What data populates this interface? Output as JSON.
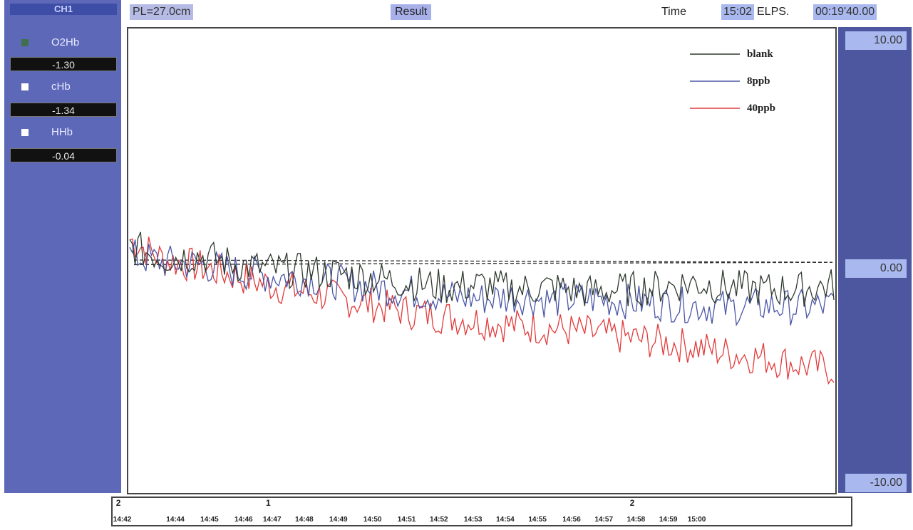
{
  "channel": {
    "header": "CH1",
    "items": [
      {
        "label": "O2Hb",
        "value": "-1.30",
        "swatch": "#3f6f4c"
      },
      {
        "label": "cHb",
        "value": "-1.34",
        "swatch": "#ffffff"
      },
      {
        "label": "HHb",
        "value": "-0.04",
        "swatch": "#ffffff"
      }
    ]
  },
  "top": {
    "pl": "PL=27.0cm",
    "result": "Result",
    "time_label": "Time",
    "time_value": "15:02",
    "elps_label": "ELPS.",
    "elps_value": "00:19'40.00"
  },
  "scale": {
    "top": "10.00",
    "mid": "0.00",
    "bottom": "-10.00"
  },
  "time_axis": {
    "ticks": [
      "14:42",
      "14:44",
      "14:45",
      "14:46",
      "14:47",
      "14:48",
      "14:49",
      "14:50",
      "14:51",
      "14:52",
      "14:53",
      "14:54",
      "14:55",
      "14:56",
      "14:57",
      "14:58",
      "14:59",
      "15:00"
    ],
    "markers": [
      {
        "label": "2",
        "at": "14:42"
      },
      {
        "label": "1",
        "at": "14:47"
      },
      {
        "label": "2",
        "at": "14:58"
      }
    ]
  },
  "chart_data": {
    "type": "line",
    "title": "",
    "xlabel": "",
    "ylabel": "",
    "ylim": [
      -10,
      10
    ],
    "x": [
      0,
      1,
      2,
      3,
      4,
      5,
      6,
      7,
      8,
      9,
      10,
      11,
      12,
      13,
      14,
      15,
      16,
      17,
      18,
      19,
      20
    ],
    "series": [
      {
        "name": "blank",
        "color": "#2f3a2f",
        "values": [
          0.6,
          0.1,
          0.2,
          -0.2,
          -0.4,
          -0.5,
          -0.6,
          -0.8,
          -1.0,
          -1.2,
          -1.1,
          -1.3,
          -1.2,
          -1.4,
          -1.3,
          -1.2,
          -1.0,
          -1.2,
          -1.3,
          -1.3,
          -1.1
        ]
      },
      {
        "name": "8ppb",
        "color": "#4a56a6",
        "values": [
          0.2,
          -0.1,
          -0.2,
          -0.5,
          -0.7,
          -0.8,
          -1.0,
          -1.2,
          -1.4,
          -1.6,
          -1.7,
          -1.6,
          -1.8,
          -1.7,
          -1.8,
          -1.9,
          -2.0,
          -2.1,
          -2.0,
          -2.1,
          -2.0
        ]
      },
      {
        "name": "40ppb",
        "color": "#e23a3a",
        "values": [
          0.9,
          0.0,
          -0.3,
          -0.7,
          -1.1,
          -1.4,
          -1.7,
          -2.0,
          -2.3,
          -2.5,
          -2.7,
          -2.9,
          -3.0,
          -3.2,
          -3.4,
          -3.6,
          -3.8,
          -4.1,
          -4.3,
          -4.6,
          -4.8
        ]
      }
    ],
    "reference_lines": [
      0.0,
      -0.2
    ],
    "legend": "top-right"
  }
}
